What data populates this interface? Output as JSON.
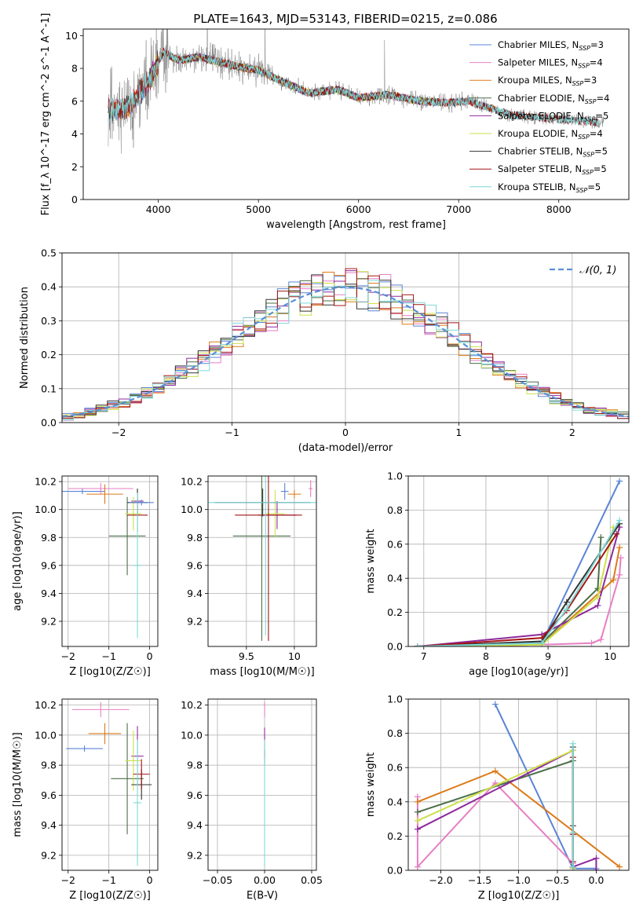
{
  "title": "PLATE=1643, MJD=53143, FIBERID=0215, z=0.086",
  "colors": {
    "Chabrier MILES": "#5a84d6",
    "Salpeter MILES": "#e77fc3",
    "Kroupa MILES": "#db7a18",
    "Chabrier ELODIE": "#4b6f48",
    "Salpeter ELODIE": "#8e2a9c",
    "Kroupa ELODIE": "#cde04a",
    "Chabrier STELIB": "#333333",
    "Salpeter STELIB": "#a31515",
    "Kroupa STELIB": "#7fd8d8",
    "data": "#7f7f7f",
    "grid": "#b0b0b0"
  },
  "chart_data": [
    {
      "id": "spectrum",
      "type": "line",
      "title": "PLATE=1643, MJD=53143, FIBERID=0215, z=0.086",
      "xlabel": "wavelength [Angstrom, rest frame]",
      "ylabel": "Flux [f_λ 10^-17 erg cm^-2 s^-1 A^-1]",
      "xlim": [
        3250,
        8700
      ],
      "ylim": [
        0,
        10.4
      ],
      "xticks": [
        4000,
        5000,
        6000,
        7000,
        8000
      ],
      "yticks": [
        0,
        2,
        4,
        6,
        8,
        10
      ],
      "grid": false,
      "legend_position": "top-right",
      "legend": [
        {
          "name": "Chabrier MILES",
          "nssp": "3"
        },
        {
          "name": "Salpeter MILES",
          "nssp": "4"
        },
        {
          "name": "Kroupa MILES",
          "nssp": "3"
        },
        {
          "name": "Chabrier ELODIE",
          "nssp": "4"
        },
        {
          "name": "Salpeter ELODIE",
          "nssp": "5"
        },
        {
          "name": "Kroupa ELODIE",
          "nssp": "4"
        },
        {
          "name": "Chabrier STELIB",
          "nssp": "5"
        },
        {
          "name": "Salpeter STELIB",
          "nssp": "5"
        },
        {
          "name": "Kroupa STELIB",
          "nssp": "5"
        }
      ],
      "continuum_x": [
        3500,
        3700,
        3900,
        4050,
        4200,
        4400,
        4600,
        4800,
        5000,
        5200,
        5500,
        5800,
        6000,
        6300,
        6600,
        6900,
        7100,
        7300,
        7500,
        7800,
        8000,
        8200,
        8400
      ],
      "continuum_y": [
        5.4,
        5.6,
        7.2,
        9.0,
        8.5,
        8.7,
        8.4,
        8.1,
        7.9,
        7.3,
        6.5,
        6.7,
        6.2,
        6.4,
        6.0,
        5.9,
        6.0,
        5.6,
        5.2,
        5.0,
        4.9,
        4.8,
        4.7
      ],
      "model_ranges": {
        "Chabrier MILES": [
          3500,
          7400
        ],
        "Salpeter MILES": [
          3500,
          7400
        ],
        "Kroupa MILES": [
          3500,
          7400
        ],
        "Chabrier ELODIE": [
          3900,
          6800
        ],
        "Salpeter ELODIE": [
          3900,
          6800
        ],
        "Kroupa ELODIE": [
          3900,
          6800
        ],
        "Chabrier STELIB": [
          3500,
          8400
        ],
        "Salpeter STELIB": [
          3500,
          8400
        ],
        "Kroupa STELIB": [
          3500,
          8400
        ]
      },
      "data_range": [
        3500,
        8450
      ]
    },
    {
      "id": "residuals",
      "type": "histogram",
      "xlabel": "(data-model)/error",
      "ylabel": "Normed distribution",
      "xlim": [
        -2.5,
        2.5
      ],
      "ylim": [
        0,
        0.5
      ],
      "xticks": [
        -2,
        -1,
        0,
        1,
        2
      ],
      "yticks": [
        0.0,
        0.1,
        0.2,
        0.3,
        0.4,
        0.5
      ],
      "grid": true,
      "legend_position": "top-right",
      "reference_curve": {
        "label": "𝒩(0, 1)",
        "color": "#5a8fd6",
        "style": "dashed"
      },
      "bin_width": 0.1,
      "bins_start": -2.5
    },
    {
      "id": "age_vs_Z",
      "type": "errorbar",
      "xlabel": "Z [log10(Z/Z☉)]",
      "ylabel": "age [log10(age/yr)]",
      "xlim": [
        -2.15,
        0.2
      ],
      "ylim": [
        9.02,
        10.24
      ],
      "xticks": [
        -2,
        -1,
        0
      ],
      "yticks": [
        9.2,
        9.4,
        9.6,
        9.8,
        10.0,
        10.2
      ],
      "grid": true,
      "points": [
        {
          "model": "Chabrier MILES",
          "x": -1.65,
          "y": 10.13,
          "xerr": 0.55,
          "yerr": 0.02
        },
        {
          "model": "Salpeter MILES",
          "x": -1.2,
          "y": 10.15,
          "xerr": 0.8,
          "yerr": 0.04
        },
        {
          "model": "Kroupa MILES",
          "x": -1.1,
          "y": 10.11,
          "xerr": 0.45,
          "yerr": 0.07
        },
        {
          "model": "Chabrier ELODIE",
          "x": -0.55,
          "y": 9.81,
          "xerr": 0.45,
          "yerr": 0.28
        },
        {
          "model": "Salpeter ELODIE",
          "x": -0.3,
          "y": 10.06,
          "xerr": 0.15,
          "yerr": 0.08
        },
        {
          "model": "Kroupa ELODIE",
          "x": -0.4,
          "y": 9.97,
          "xerr": 0.2,
          "yerr": 0.12
        },
        {
          "model": "Chabrier STELIB",
          "x": -0.3,
          "y": 10.05,
          "xerr": 0.25,
          "yerr": 0.1
        },
        {
          "model": "Salpeter STELIB",
          "x": -0.3,
          "y": 9.96,
          "xerr": 0.25,
          "yerr": 0.12
        },
        {
          "model": "Kroupa STELIB",
          "x": -0.3,
          "y": 9.6,
          "xerr": 0.1,
          "yerr": 0.52
        },
        {
          "model": "Chabrier MILES",
          "x": -0.2,
          "y": 10.05,
          "xerr": 0.3,
          "yerr": 0.02
        }
      ]
    },
    {
      "id": "age_vs_mass",
      "type": "errorbar",
      "xlabel": "mass [log10(M/M☉)]",
      "xlim": [
        9.1,
        10.23
      ],
      "ylim": [
        9.02,
        10.24
      ],
      "xticks": [
        9.5,
        10.0
      ],
      "yticks": [
        9.2,
        9.4,
        9.6,
        9.8,
        10.0,
        10.2
      ],
      "grid": true,
      "points": [
        {
          "model": "Chabrier MILES",
          "x": 9.9,
          "y": 10.13,
          "xerr": 0.04,
          "yerr": 0.06
        },
        {
          "model": "Salpeter MILES",
          "x": 10.17,
          "y": 10.15,
          "xerr": 0.02,
          "yerr": 0.06
        },
        {
          "model": "Kroupa MILES",
          "x": 10.0,
          "y": 10.11,
          "xerr": 0.07,
          "yerr": 0.03
        },
        {
          "model": "Chabrier ELODIE",
          "x": 9.66,
          "y": 9.81,
          "xerr": 0.3,
          "yerr": 0.75
        },
        {
          "model": "Salpeter ELODIE",
          "x": 9.82,
          "y": 9.96,
          "xerr": 0.2,
          "yerr": 0.1
        },
        {
          "model": "Kroupa ELODIE",
          "x": 9.8,
          "y": 9.97,
          "xerr": 0.1,
          "yerr": 0.17
        },
        {
          "model": "Chabrier STELIB",
          "x": 9.67,
          "y": 10.05,
          "xerr": 0.5,
          "yerr": 0.1
        },
        {
          "model": "Salpeter STELIB",
          "x": 9.73,
          "y": 9.96,
          "xerr": 0.35,
          "yerr": 0.9
        },
        {
          "model": "Kroupa STELIB",
          "x": 9.7,
          "y": 10.05,
          "xerr": 0.6,
          "yerr": 0.95
        }
      ]
    },
    {
      "id": "mass_weight_vs_age",
      "type": "line",
      "xlabel": "age [log10(age/yr)]",
      "ylabel": "mass weight",
      "xlim": [
        6.75,
        10.3
      ],
      "ylim": [
        0,
        1.0
      ],
      "xticks": [
        7,
        8,
        9,
        10
      ],
      "yticks": [
        0.0,
        0.2,
        0.4,
        0.6,
        0.8,
        1.0
      ],
      "grid": true,
      "series": [
        {
          "model": "Chabrier MILES",
          "x": [
            6.9,
            8.9,
            10.15
          ],
          "y": [
            0.0,
            0.02,
            0.97
          ]
        },
        {
          "model": "Salpeter MILES",
          "x": [
            6.9,
            8.9,
            9.7,
            9.85,
            10.15,
            10.17
          ],
          "y": [
            0.0,
            0.01,
            0.02,
            0.04,
            0.42,
            0.52
          ]
        },
        {
          "model": "Kroupa MILES",
          "x": [
            6.9,
            8.9,
            10.05,
            10.15
          ],
          "y": [
            0.0,
            0.01,
            0.39,
            0.58
          ]
        },
        {
          "model": "Chabrier ELODIE",
          "x": [
            6.9,
            8.9,
            9.8,
            9.85
          ],
          "y": [
            0.0,
            0.02,
            0.34,
            0.64
          ]
        },
        {
          "model": "Salpeter ELODIE",
          "x": [
            6.9,
            8.9,
            9.8,
            10.15
          ],
          "y": [
            0.0,
            0.07,
            0.24,
            0.7
          ]
        },
        {
          "model": "Kroupa ELODIE",
          "x": [
            6.9,
            8.9,
            9.8,
            10.05
          ],
          "y": [
            0.0,
            0.01,
            0.29,
            0.7
          ]
        },
        {
          "model": "Chabrier STELIB",
          "x": [
            6.9,
            8.9,
            9.3,
            10.15
          ],
          "y": [
            0.0,
            0.03,
            0.26,
            0.72
          ]
        },
        {
          "model": "Salpeter STELIB",
          "x": [
            6.9,
            8.9,
            9.3,
            10.1
          ],
          "y": [
            0.0,
            0.05,
            0.21,
            0.66
          ]
        },
        {
          "model": "Kroupa STELIB",
          "x": [
            6.9,
            8.9,
            9.3,
            10.15
          ],
          "y": [
            0.0,
            0.02,
            0.22,
            0.74
          ]
        }
      ]
    },
    {
      "id": "mass_vs_Z",
      "type": "errorbar",
      "xlabel": "Z [log10(Z/Z☉)]",
      "ylabel": "mass [log10(M/M☉)]",
      "xlim": [
        -2.15,
        0.2
      ],
      "ylim": [
        9.1,
        10.24
      ],
      "xticks": [
        -2,
        -1,
        0
      ],
      "yticks": [
        9.2,
        9.4,
        9.6,
        9.8,
        10.0,
        10.2
      ],
      "grid": true,
      "points": [
        {
          "model": "Chabrier MILES",
          "x": -1.6,
          "y": 9.91,
          "xerr": 0.45,
          "yerr": 0.02
        },
        {
          "model": "Salpeter MILES",
          "x": -1.2,
          "y": 10.17,
          "xerr": 0.7,
          "yerr": 0.05
        },
        {
          "model": "Kroupa MILES",
          "x": -1.1,
          "y": 10.01,
          "xerr": 0.4,
          "yerr": 0.07
        },
        {
          "model": "Chabrier ELODIE",
          "x": -0.55,
          "y": 9.71,
          "xerr": 0.4,
          "yerr": 0.37
        },
        {
          "model": "Salpeter ELODIE",
          "x": -0.3,
          "y": 9.86,
          "xerr": 0.15,
          "yerr": 0.2
        },
        {
          "model": "Kroupa ELODIE",
          "x": -0.4,
          "y": 9.83,
          "xerr": 0.2,
          "yerr": 0.2
        },
        {
          "model": "Chabrier STELIB",
          "x": -0.2,
          "y": 9.67,
          "xerr": 0.25,
          "yerr": 0.1
        },
        {
          "model": "Salpeter STELIB",
          "x": -0.2,
          "y": 9.74,
          "xerr": 0.2,
          "yerr": 0.1
        },
        {
          "model": "Kroupa STELIB",
          "x": -0.3,
          "y": 9.55,
          "xerr": 0.1,
          "yerr": 0.42
        }
      ]
    },
    {
      "id": "mass_vs_ebv",
      "type": "errorbar",
      "xlabel": "E(B-V)",
      "xlim": [
        -0.06,
        0.055
      ],
      "ylim": [
        9.1,
        10.24
      ],
      "xticks": [
        -0.05,
        0.0,
        0.05
      ],
      "xtick_labels": [
        "−0.05",
        "0.00",
        "0.05"
      ],
      "yticks": [
        9.2,
        9.4,
        9.6,
        9.8,
        10.0,
        10.2
      ],
      "grid": true,
      "points": [
        {
          "model": "Salpeter MILES",
          "x": 0.0,
          "y": 10.17,
          "xerr": 0.0,
          "yerr": 0.05
        },
        {
          "model": "Salpeter ELODIE",
          "x": 0.0,
          "y": 9.95,
          "xerr": 0.0,
          "yerr": 0.1
        },
        {
          "model": "Salpeter STELIB",
          "x": 0.0,
          "y": 9.85,
          "xerr": 0.0,
          "yerr": 0.05
        },
        {
          "model": "Kroupa STELIB",
          "x": 0.0,
          "y": 9.55,
          "xerr": 0.0,
          "yerr": 0.42
        }
      ]
    },
    {
      "id": "mass_weight_vs_Z",
      "type": "line",
      "xlabel": "Z [log10(Z/Z☉)]",
      "ylabel": "mass weight",
      "xlim": [
        -2.42,
        0.42
      ],
      "ylim": [
        0,
        1.0
      ],
      "xticks": [
        -2.0,
        -1.5,
        -1.0,
        -0.5,
        0.0
      ],
      "xtick_labels": [
        "−2.0",
        "−1.5",
        "−1.0",
        "−0.5",
        "0.0"
      ],
      "yticks": [
        0.0,
        0.2,
        0.4,
        0.6,
        0.8,
        1.0
      ],
      "grid": true,
      "series": [
        {
          "model": "Chabrier MILES",
          "x": [
            -1.3,
            -0.3,
            0.0
          ],
          "y": [
            0.97,
            0.01,
            0.01
          ]
        },
        {
          "model": "Salpeter MILES",
          "x": [
            -2.3,
            -2.3,
            -1.3,
            -0.3,
            -0.3
          ],
          "y": [
            0.43,
            0.02,
            0.51,
            0.04,
            0.01
          ]
        },
        {
          "model": "Kroupa MILES",
          "x": [
            -2.3,
            -1.3,
            0.3
          ],
          "y": [
            0.4,
            0.58,
            0.02
          ]
        },
        {
          "model": "Chabrier ELODIE",
          "x": [
            -2.3,
            -0.3,
            -0.3
          ],
          "y": [
            0.34,
            0.64,
            0.02
          ]
        },
        {
          "model": "Salpeter ELODIE",
          "x": [
            -2.3,
            -0.3,
            -0.3,
            0.0,
            0.0
          ],
          "y": [
            0.24,
            0.7,
            0.02,
            0.07,
            0.0
          ]
        },
        {
          "model": "Kroupa ELODIE",
          "x": [
            -2.3,
            -0.3,
            -0.3
          ],
          "y": [
            0.29,
            0.7,
            0.01
          ]
        },
        {
          "model": "Chabrier STELIB",
          "x": [
            -0.3,
            -0.3,
            -0.3
          ],
          "y": [
            0.72,
            0.26,
            0.02
          ]
        },
        {
          "model": "Salpeter STELIB",
          "x": [
            -0.3,
            -0.3,
            -0.3
          ],
          "y": [
            0.66,
            0.21,
            0.05
          ]
        },
        {
          "model": "Kroupa STELIB",
          "x": [
            -0.3,
            -0.3,
            -0.3
          ],
          "y": [
            0.74,
            0.22,
            0.02
          ]
        }
      ]
    }
  ]
}
